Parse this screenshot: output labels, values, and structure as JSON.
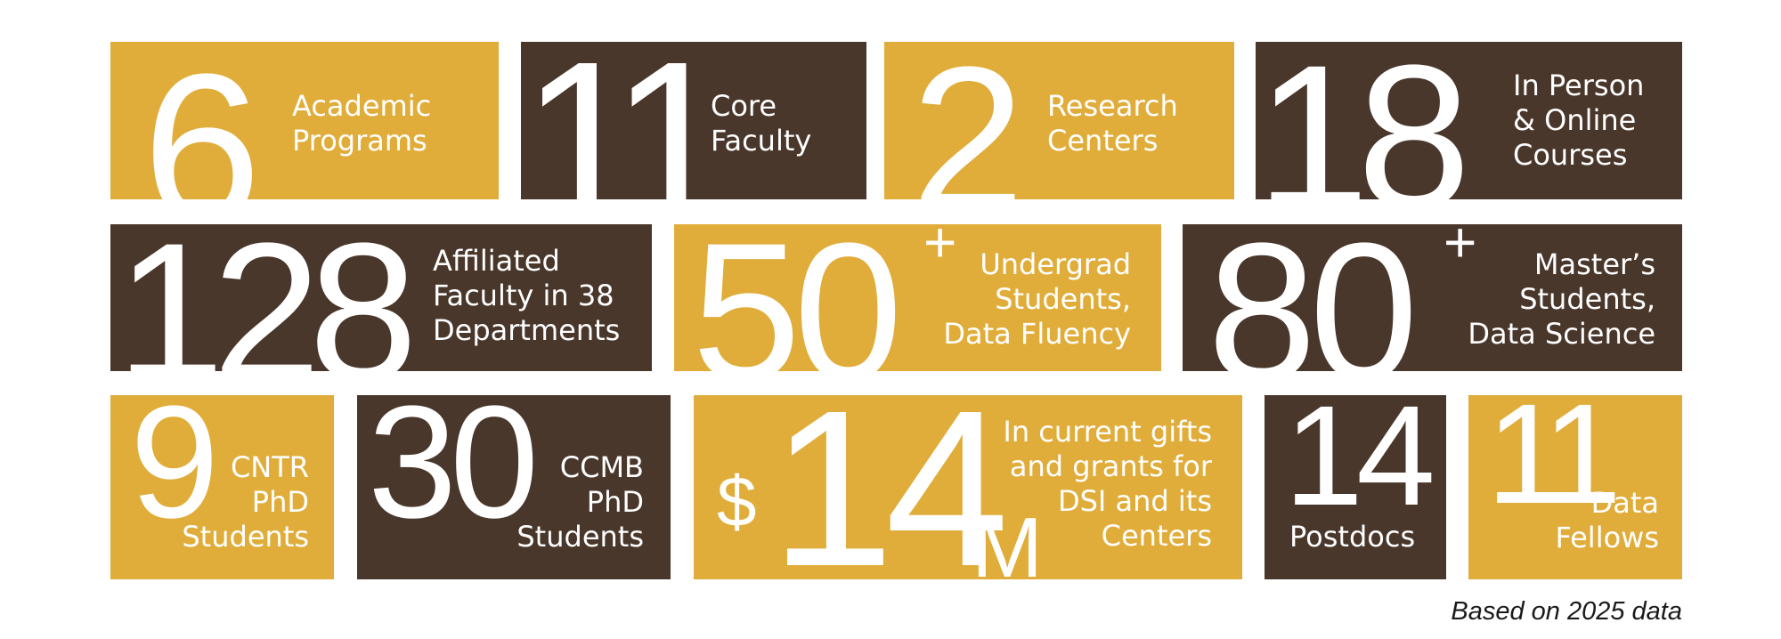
{
  "stats": {
    "academic_programs": {
      "value": "6",
      "label": "Academic\nPrograms"
    },
    "core_faculty": {
      "value": "11",
      "label": "Core\nFaculty"
    },
    "research_centers": {
      "value": "2",
      "label": "Research\nCenters"
    },
    "courses": {
      "value": "18",
      "label": "In Person\n& Online\nCourses"
    },
    "affiliated_faculty": {
      "value": "128",
      "label": "Affiliated\nFaculty in 38\nDepartments"
    },
    "undergrad": {
      "value": "50",
      "suffix": "+",
      "label": "Undergrad\nStudents,\nData Fluency"
    },
    "masters": {
      "value": "80",
      "suffix": "+",
      "label": "Master’s\nStudents,\nData Science"
    },
    "cntr_phd": {
      "value": "9",
      "label": "CNTR\nPhD\nStudents"
    },
    "ccmb_phd": {
      "value": "30",
      "label": "CCMB\nPhD\nStudents"
    },
    "gifts_grants": {
      "prefix": "$",
      "value": "14",
      "suffix": "M",
      "label": "In current gifts\nand grants for\nDSI and its\nCenters"
    },
    "postdocs": {
      "value": "14",
      "label": "Postdocs"
    },
    "data_fellows": {
      "value": "11",
      "label": "Data\nFellows"
    }
  },
  "footer": {
    "note": "Based on 2025 data"
  },
  "colors": {
    "gold": "#e1ad3a",
    "brown": "#4a372b",
    "text": "#ffffff"
  }
}
